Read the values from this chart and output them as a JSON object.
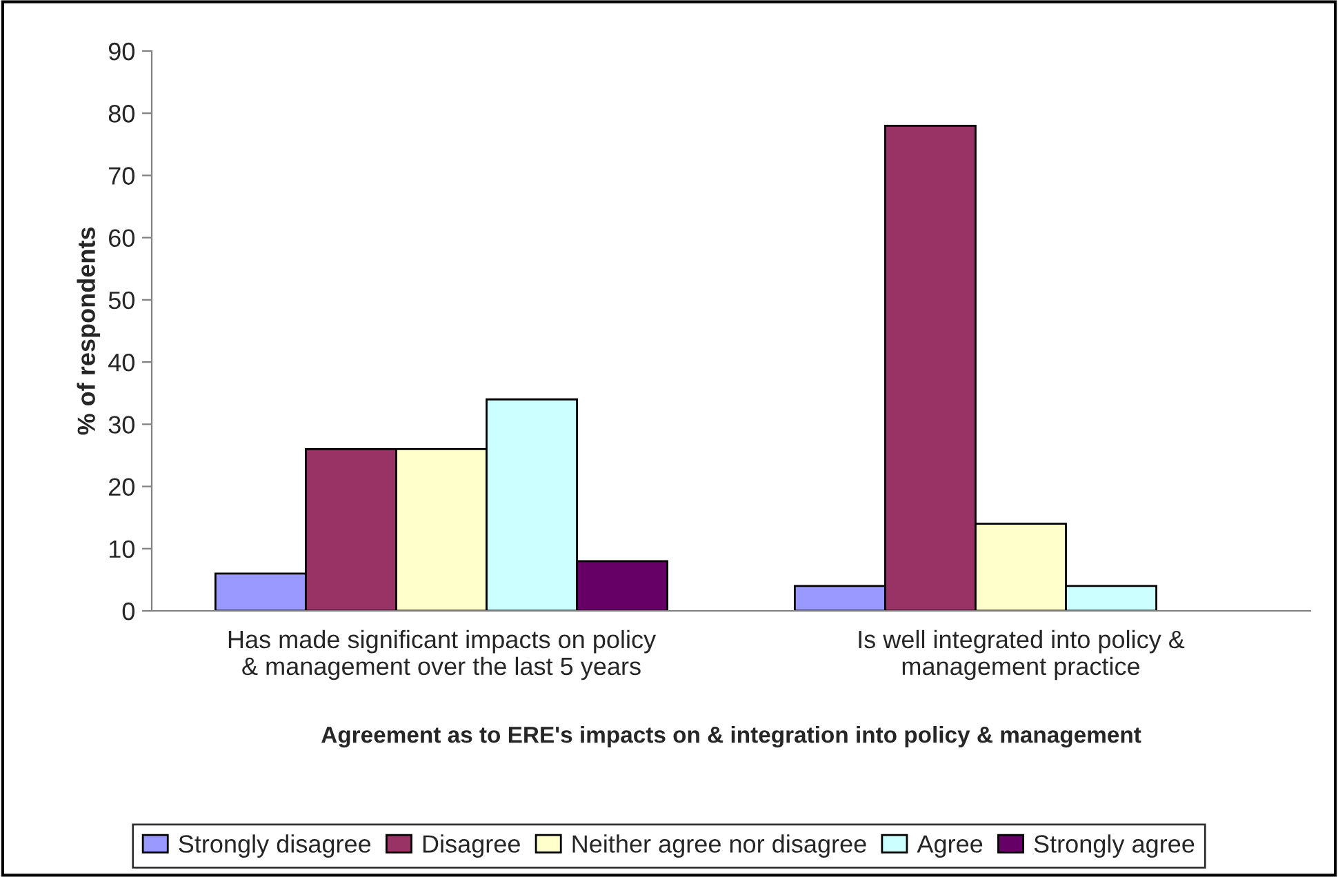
{
  "chart_data": {
    "type": "bar",
    "xlabel": "Agreement as to ERE's impacts on & integration into policy & management",
    "ylabel": "% of respondents",
    "categories": [
      "Has made significant impacts on policy\n& management over the last 5 years",
      "Is well integrated into policy &\nmanagement practice"
    ],
    "series": [
      {
        "name": "Strongly disagree",
        "color": "#9999ff",
        "values": [
          6,
          4
        ]
      },
      {
        "name": "Disagree",
        "color": "#993366",
        "values": [
          26,
          78
        ]
      },
      {
        "name": "Neither agree nor disagree",
        "color": "#ffffcc",
        "values": [
          26,
          14
        ]
      },
      {
        "name": "Agree",
        "color": "#ccffff",
        "values": [
          34,
          4
        ]
      },
      {
        "name": "Strongly agree",
        "color": "#660066",
        "values": [
          8,
          null
        ]
      }
    ],
    "ylim": [
      0,
      90
    ],
    "yticks": [
      0,
      10,
      20,
      30,
      40,
      50,
      60,
      70,
      80,
      90
    ],
    "grid": false,
    "legend": "bottom"
  }
}
